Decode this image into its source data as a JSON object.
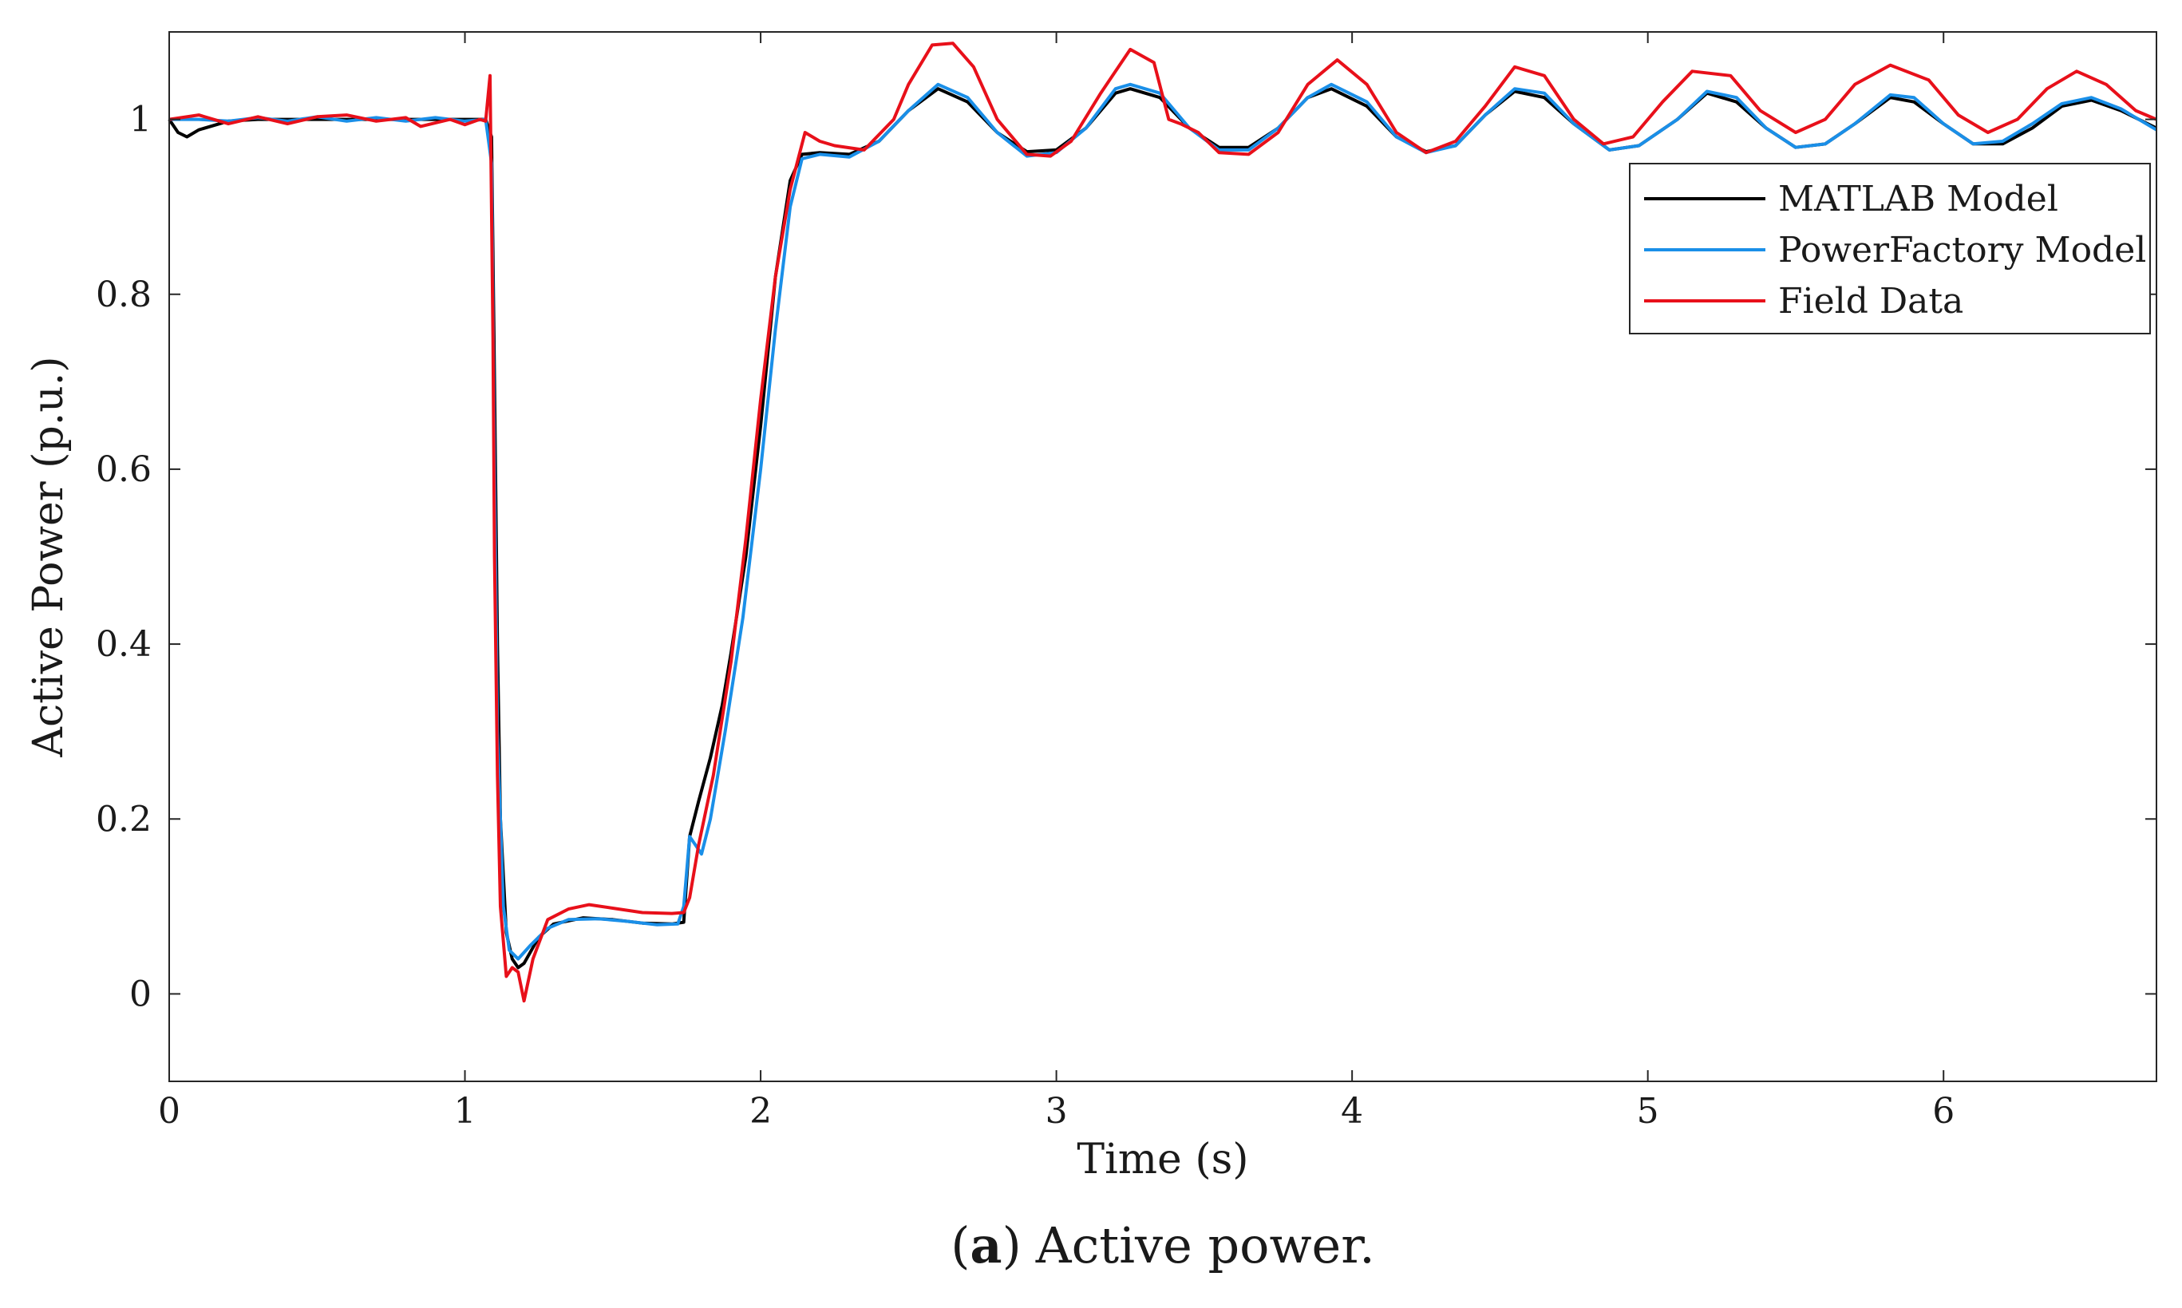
{
  "chart_data": {
    "type": "line",
    "xlabel": "Time (s)",
    "ylabel": "Active Power (p.u.)",
    "xlim": [
      0,
      6.72
    ],
    "ylim": [
      -0.1,
      1.1
    ],
    "xticks": [
      0,
      1,
      2,
      3,
      4,
      5,
      6
    ],
    "yticks": [
      0,
      0.2,
      0.4,
      0.6,
      0.8,
      1
    ],
    "xtick_labels": [
      "0",
      "1",
      "2",
      "3",
      "4",
      "5",
      "6"
    ],
    "ytick_labels": [
      "0",
      "0.2",
      "0.4",
      "0.6",
      "0.8",
      "1"
    ],
    "grid": false,
    "legend_position": "top-right",
    "caption": {
      "letter": "a",
      "open_paren": "(",
      "close_paren": ")",
      "text": "Active power."
    },
    "series": [
      {
        "name": "MATLAB Model",
        "color": "#000000",
        "points": [
          [
            0,
            1.0
          ],
          [
            0.03,
            0.985
          ],
          [
            0.06,
            0.98
          ],
          [
            0.1,
            0.988
          ],
          [
            0.2,
            0.998
          ],
          [
            0.3,
            1.0
          ],
          [
            0.5,
            1.0
          ],
          [
            0.7,
            1.0
          ],
          [
            0.9,
            1.0
          ],
          [
            1.07,
            1.0
          ],
          [
            1.09,
            0.98
          ],
          [
            1.1,
            0.7
          ],
          [
            1.11,
            0.4
          ],
          [
            1.12,
            0.2
          ],
          [
            1.14,
            0.07
          ],
          [
            1.16,
            0.04
          ],
          [
            1.18,
            0.03
          ],
          [
            1.2,
            0.035
          ],
          [
            1.25,
            0.065
          ],
          [
            1.3,
            0.08
          ],
          [
            1.4,
            0.087
          ],
          [
            1.5,
            0.085
          ],
          [
            1.6,
            0.081
          ],
          [
            1.7,
            0.08
          ],
          [
            1.74,
            0.082
          ],
          [
            1.76,
            0.18
          ],
          [
            1.79,
            0.22
          ],
          [
            1.83,
            0.27
          ],
          [
            1.87,
            0.33
          ],
          [
            1.9,
            0.39
          ],
          [
            1.95,
            0.5
          ],
          [
            2.0,
            0.65
          ],
          [
            2.05,
            0.82
          ],
          [
            2.1,
            0.93
          ],
          [
            2.14,
            0.96
          ],
          [
            2.2,
            0.962
          ],
          [
            2.3,
            0.96
          ],
          [
            2.4,
            0.975
          ],
          [
            2.5,
            1.01
          ],
          [
            2.6,
            1.035
          ],
          [
            2.7,
            1.02
          ],
          [
            2.8,
            0.985
          ],
          [
            2.9,
            0.963
          ],
          [
            3.0,
            0.965
          ],
          [
            3.1,
            0.99
          ],
          [
            3.2,
            1.03
          ],
          [
            3.25,
            1.035
          ],
          [
            3.35,
            1.025
          ],
          [
            3.45,
            0.99
          ],
          [
            3.55,
            0.968
          ],
          [
            3.65,
            0.968
          ],
          [
            3.75,
            0.99
          ],
          [
            3.85,
            1.025
          ],
          [
            3.93,
            1.035
          ],
          [
            4.05,
            1.015
          ],
          [
            4.15,
            0.98
          ],
          [
            4.25,
            0.963
          ],
          [
            4.35,
            0.97
          ],
          [
            4.45,
            1.005
          ],
          [
            4.55,
            1.032
          ],
          [
            4.65,
            1.025
          ],
          [
            4.75,
            0.995
          ],
          [
            4.87,
            0.965
          ],
          [
            4.97,
            0.97
          ],
          [
            5.1,
            1.0
          ],
          [
            5.2,
            1.03
          ],
          [
            5.3,
            1.02
          ],
          [
            5.4,
            0.99
          ],
          [
            5.5,
            0.968
          ],
          [
            5.6,
            0.972
          ],
          [
            5.7,
            0.995
          ],
          [
            5.82,
            1.025
          ],
          [
            5.9,
            1.02
          ],
          [
            6.0,
            0.995
          ],
          [
            6.1,
            0.972
          ],
          [
            6.2,
            0.972
          ],
          [
            6.3,
            0.99
          ],
          [
            6.4,
            1.015
          ],
          [
            6.5,
            1.022
          ],
          [
            6.6,
            1.01
          ],
          [
            6.72,
            0.99
          ]
        ]
      },
      {
        "name": "PowerFactory Model",
        "color": "#1a8fe8",
        "points": [
          [
            0,
            1.0
          ],
          [
            0.1,
            1.0
          ],
          [
            0.2,
            0.998
          ],
          [
            0.3,
            1.002
          ],
          [
            0.4,
            0.998
          ],
          [
            0.5,
            1.003
          ],
          [
            0.6,
            0.998
          ],
          [
            0.7,
            1.002
          ],
          [
            0.8,
            0.998
          ],
          [
            0.9,
            1.002
          ],
          [
            1.0,
            0.998
          ],
          [
            1.07,
            1.0
          ],
          [
            1.09,
            0.95
          ],
          [
            1.1,
            0.6
          ],
          [
            1.11,
            0.3
          ],
          [
            1.13,
            0.1
          ],
          [
            1.15,
            0.05
          ],
          [
            1.18,
            0.04
          ],
          [
            1.22,
            0.055
          ],
          [
            1.28,
            0.075
          ],
          [
            1.35,
            0.085
          ],
          [
            1.45,
            0.086
          ],
          [
            1.55,
            0.083
          ],
          [
            1.65,
            0.079
          ],
          [
            1.72,
            0.08
          ],
          [
            1.74,
            0.1
          ],
          [
            1.76,
            0.18
          ],
          [
            1.78,
            0.17
          ],
          [
            1.8,
            0.16
          ],
          [
            1.83,
            0.2
          ],
          [
            1.88,
            0.3
          ],
          [
            1.94,
            0.43
          ],
          [
            2.0,
            0.6
          ],
          [
            2.05,
            0.76
          ],
          [
            2.1,
            0.9
          ],
          [
            2.14,
            0.955
          ],
          [
            2.2,
            0.96
          ],
          [
            2.3,
            0.957
          ],
          [
            2.4,
            0.975
          ],
          [
            2.5,
            1.01
          ],
          [
            2.6,
            1.04
          ],
          [
            2.7,
            1.025
          ],
          [
            2.8,
            0.985
          ],
          [
            2.9,
            0.958
          ],
          [
            3.0,
            0.962
          ],
          [
            3.1,
            0.99
          ],
          [
            3.2,
            1.035
          ],
          [
            3.25,
            1.04
          ],
          [
            3.35,
            1.03
          ],
          [
            3.45,
            0.99
          ],
          [
            3.55,
            0.965
          ],
          [
            3.65,
            0.965
          ],
          [
            3.75,
            0.99
          ],
          [
            3.85,
            1.025
          ],
          [
            3.93,
            1.04
          ],
          [
            4.05,
            1.02
          ],
          [
            4.15,
            0.98
          ],
          [
            4.25,
            0.962
          ],
          [
            4.35,
            0.97
          ],
          [
            4.45,
            1.005
          ],
          [
            4.55,
            1.035
          ],
          [
            4.65,
            1.03
          ],
          [
            4.75,
            0.995
          ],
          [
            4.87,
            0.965
          ],
          [
            4.97,
            0.97
          ],
          [
            5.1,
            1.0
          ],
          [
            5.2,
            1.032
          ],
          [
            5.3,
            1.025
          ],
          [
            5.4,
            0.99
          ],
          [
            5.5,
            0.968
          ],
          [
            5.6,
            0.972
          ],
          [
            5.7,
            0.995
          ],
          [
            5.82,
            1.028
          ],
          [
            5.9,
            1.025
          ],
          [
            6.0,
            0.995
          ],
          [
            6.1,
            0.972
          ],
          [
            6.2,
            0.975
          ],
          [
            6.3,
            0.995
          ],
          [
            6.4,
            1.018
          ],
          [
            6.5,
            1.025
          ],
          [
            6.6,
            1.012
          ],
          [
            6.72,
            0.988
          ]
        ]
      },
      {
        "name": "Field Data",
        "color": "#e8101a",
        "points": [
          [
            0,
            1.0
          ],
          [
            0.1,
            1.005
          ],
          [
            0.2,
            0.995
          ],
          [
            0.3,
            1.003
          ],
          [
            0.4,
            0.995
          ],
          [
            0.5,
            1.003
          ],
          [
            0.6,
            1.005
          ],
          [
            0.7,
            0.998
          ],
          [
            0.8,
            1.002
          ],
          [
            0.85,
            0.992
          ],
          [
            0.95,
            1.0
          ],
          [
            1.0,
            0.994
          ],
          [
            1.05,
            1.0
          ],
          [
            1.07,
            0.998
          ],
          [
            1.085,
            1.05
          ],
          [
            1.095,
            0.75
          ],
          [
            1.1,
            0.5
          ],
          [
            1.11,
            0.25
          ],
          [
            1.12,
            0.1
          ],
          [
            1.14,
            0.02
          ],
          [
            1.16,
            0.03
          ],
          [
            1.18,
            0.025
          ],
          [
            1.2,
            -0.008
          ],
          [
            1.23,
            0.04
          ],
          [
            1.28,
            0.085
          ],
          [
            1.35,
            0.097
          ],
          [
            1.42,
            0.102
          ],
          [
            1.5,
            0.098
          ],
          [
            1.6,
            0.093
          ],
          [
            1.7,
            0.092
          ],
          [
            1.74,
            0.093
          ],
          [
            1.76,
            0.11
          ],
          [
            1.79,
            0.17
          ],
          [
            1.84,
            0.25
          ],
          [
            1.9,
            0.38
          ],
          [
            1.95,
            0.52
          ],
          [
            2.0,
            0.68
          ],
          [
            2.05,
            0.82
          ],
          [
            2.1,
            0.92
          ],
          [
            2.15,
            0.985
          ],
          [
            2.2,
            0.975
          ],
          [
            2.25,
            0.97
          ],
          [
            2.35,
            0.965
          ],
          [
            2.45,
            1.0
          ],
          [
            2.5,
            1.04
          ],
          [
            2.58,
            1.085
          ],
          [
            2.65,
            1.087
          ],
          [
            2.72,
            1.06
          ],
          [
            2.8,
            1.0
          ],
          [
            2.9,
            0.96
          ],
          [
            2.98,
            0.958
          ],
          [
            3.05,
            0.975
          ],
          [
            3.15,
            1.03
          ],
          [
            3.25,
            1.08
          ],
          [
            3.33,
            1.065
          ],
          [
            3.38,
            1.0
          ],
          [
            3.42,
            0.995
          ],
          [
            3.48,
            0.985
          ],
          [
            3.55,
            0.962
          ],
          [
            3.65,
            0.96
          ],
          [
            3.75,
            0.985
          ],
          [
            3.85,
            1.04
          ],
          [
            3.95,
            1.068
          ],
          [
            4.05,
            1.04
          ],
          [
            4.15,
            0.985
          ],
          [
            4.25,
            0.962
          ],
          [
            4.35,
            0.975
          ],
          [
            4.45,
            1.015
          ],
          [
            4.55,
            1.06
          ],
          [
            4.65,
            1.05
          ],
          [
            4.75,
            1.0
          ],
          [
            4.85,
            0.972
          ],
          [
            4.95,
            0.98
          ],
          [
            5.05,
            1.02
          ],
          [
            5.15,
            1.055
          ],
          [
            5.28,
            1.05
          ],
          [
            5.38,
            1.01
          ],
          [
            5.5,
            0.985
          ],
          [
            5.6,
            1.0
          ],
          [
            5.7,
            1.04
          ],
          [
            5.82,
            1.062
          ],
          [
            5.95,
            1.045
          ],
          [
            6.05,
            1.005
          ],
          [
            6.15,
            0.985
          ],
          [
            6.25,
            1.0
          ],
          [
            6.35,
            1.035
          ],
          [
            6.45,
            1.055
          ],
          [
            6.55,
            1.04
          ],
          [
            6.65,
            1.01
          ],
          [
            6.72,
            1.0
          ]
        ]
      }
    ]
  }
}
